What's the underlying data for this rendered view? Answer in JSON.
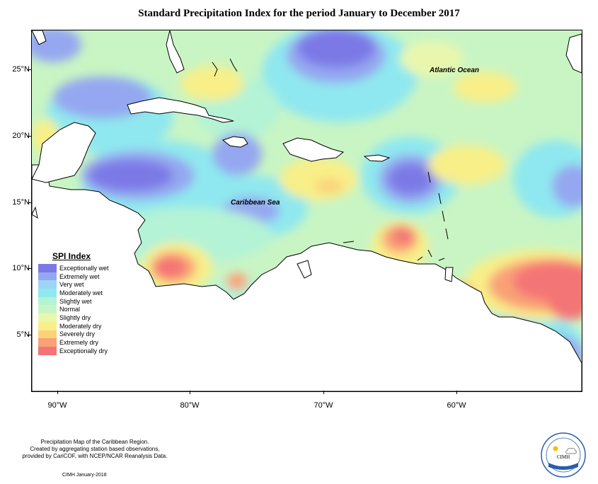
{
  "title": "Standard Precipitation Index for the period January to December 2017",
  "map": {
    "lat_labels": [
      "25°N",
      "20°N",
      "15°N",
      "10°N",
      "5°N"
    ],
    "lon_labels": [
      "90°W",
      "80°W",
      "70°W",
      "60°W"
    ],
    "ocean_labels": [
      "Atlantic Ocean",
      "Caribbean Sea"
    ],
    "background_color": "#c9f5c4"
  },
  "legend": {
    "title": "SPI Index",
    "items": [
      {
        "label": "Exceptionally wet",
        "color": "#7b79e6"
      },
      {
        "label": "Extremely wet",
        "color": "#95a7f0"
      },
      {
        "label": "Very wet",
        "color": "#9dd5f7"
      },
      {
        "label": "Moderately wet",
        "color": "#8fe8ef"
      },
      {
        "label": "Slightly wet",
        "color": "#b4f3d6"
      },
      {
        "label": "Normal",
        "color": "#c9f5c4"
      },
      {
        "label": "Slightly dry",
        "color": "#e9f7ad"
      },
      {
        "label": "Moderately dry",
        "color": "#f8ef88"
      },
      {
        "label": "Severely dry",
        "color": "#fbd27a"
      },
      {
        "label": "Extremely dry",
        "color": "#f9a177"
      },
      {
        "label": "Exceptionally dry",
        "color": "#f47474"
      }
    ]
  },
  "footer": {
    "line1": "Precipitation Map of the Caribbean Region.",
    "line2": "Created by aggregating station based observations,",
    "line3": "provided by CariCOF, with NCEP/NCAR Reanalysis Data.",
    "date_line": "CIMH January-2018"
  },
  "logo": {
    "name": "CIMH"
  }
}
